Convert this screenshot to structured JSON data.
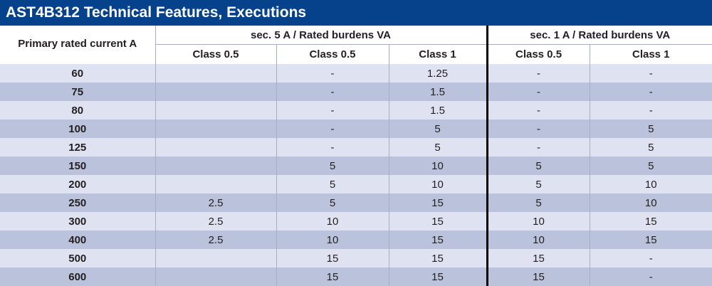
{
  "title": "AST4B312 Technical Features, Executions",
  "header": {
    "primary_label": "Primary rated current A",
    "group_5a": "sec. 5 A / Rated burdens VA",
    "group_1a": "sec. 1 A / Rated burdens VA",
    "columns": [
      "Class 0.5",
      "Class 0.5",
      "Class 1",
      "Class 0.5",
      "Class 1"
    ]
  },
  "rows": [
    {
      "primary": "60",
      "c5_a": "",
      "c5_b": "-",
      "c5_c": "1.25",
      "c1_a": "-",
      "c1_b": "-"
    },
    {
      "primary": "75",
      "c5_a": "",
      "c5_b": "-",
      "c5_c": "1.5",
      "c1_a": "-",
      "c1_b": "-"
    },
    {
      "primary": "80",
      "c5_a": "",
      "c5_b": "-",
      "c5_c": "1.5",
      "c1_a": "-",
      "c1_b": "-"
    },
    {
      "primary": "100",
      "c5_a": "",
      "c5_b": "-",
      "c5_c": "5",
      "c1_a": "-",
      "c1_b": "5"
    },
    {
      "primary": "125",
      "c5_a": "",
      "c5_b": "-",
      "c5_c": "5",
      "c1_a": "-",
      "c1_b": "5"
    },
    {
      "primary": "150",
      "c5_a": "",
      "c5_b": "5",
      "c5_c": "10",
      "c1_a": "5",
      "c1_b": "5"
    },
    {
      "primary": "200",
      "c5_a": "",
      "c5_b": "5",
      "c5_c": "10",
      "c1_a": "5",
      "c1_b": "10"
    },
    {
      "primary": "250",
      "c5_a": "2.5",
      "c5_b": "5",
      "c5_c": "15",
      "c1_a": "5",
      "c1_b": "10"
    },
    {
      "primary": "300",
      "c5_a": "2.5",
      "c5_b": "10",
      "c5_c": "15",
      "c1_a": "10",
      "c1_b": "15"
    },
    {
      "primary": "400",
      "c5_a": "2.5",
      "c5_b": "10",
      "c5_c": "15",
      "c1_a": "10",
      "c1_b": "15"
    },
    {
      "primary": "500",
      "c5_a": "",
      "c5_b": "15",
      "c5_c": "15",
      "c1_a": "15",
      "c1_b": "-"
    },
    {
      "primary": "600",
      "c5_a": "",
      "c5_b": "15",
      "c5_c": "15",
      "c1_a": "15",
      "c1_b": "-"
    }
  ],
  "colors": {
    "title_bg": "#06428b",
    "row_light": "#dfe3f1",
    "row_dark": "#bac2dc",
    "divider": "#000000"
  }
}
